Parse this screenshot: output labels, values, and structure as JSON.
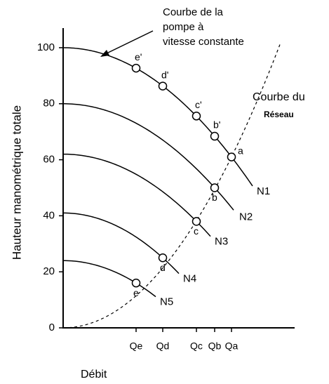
{
  "chart_data": {
    "type": "line",
    "y_label": "Hauteur manométrique totale",
    "x_label": "Débit",
    "categories": [
      "Qe",
      "Qd",
      "Qc",
      "Qb",
      "Qa"
    ],
    "ylim": [
      0,
      107
    ],
    "yticks": [
      0,
      20,
      40,
      60,
      80,
      100
    ],
    "curves": [
      {
        "name": "N1",
        "start": 100,
        "points": [
          {
            "label": "e'",
            "category": "Qe",
            "value": 92.7
          },
          {
            "label": "d'",
            "category": "Qd",
            "value": 86.3
          },
          {
            "label": "c'",
            "category": "Qc",
            "value": 75.6
          },
          {
            "label": "b'",
            "category": "Qb",
            "value": 68.4
          },
          {
            "label": "a",
            "category": "Qa",
            "value": 61
          }
        ]
      },
      {
        "name": "N2",
        "start": 80,
        "points": [
          {
            "label": "b",
            "category": "Qb",
            "value": 50
          }
        ]
      },
      {
        "name": "N3",
        "start": 62,
        "points": [
          {
            "label": "c",
            "category": "Qc",
            "value": 38
          }
        ]
      },
      {
        "name": "N4",
        "start": 41,
        "points": [
          {
            "label": "d",
            "category": "Qd",
            "value": 25
          }
        ]
      },
      {
        "name": "N5",
        "start": 24,
        "points": [
          {
            "label": "e",
            "category": "Qe",
            "value": 16
          }
        ]
      }
    ],
    "pump_curve_note": [
      "Courbe de la",
      "pompe à",
      "vitesse constante"
    ],
    "system_curve_note": [
      "Courbe du",
      "Réseau"
    ]
  }
}
